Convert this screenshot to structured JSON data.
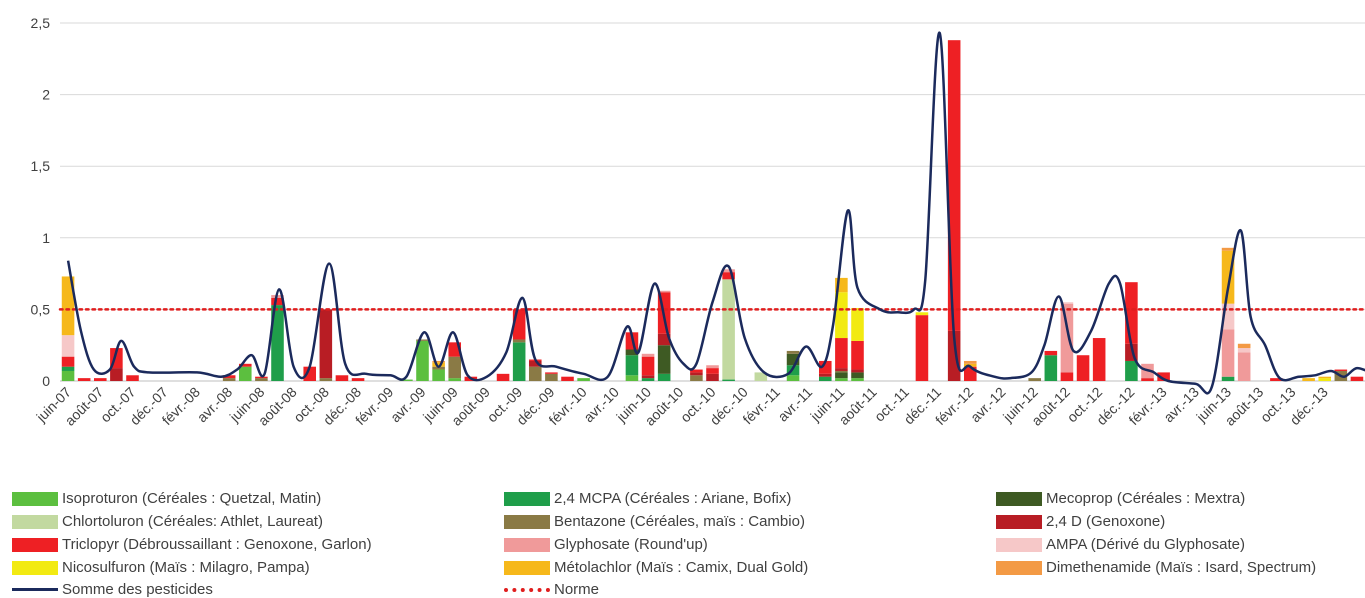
{
  "chart_data": {
    "type": "bar",
    "stacked": true,
    "ylim": [
      0,
      2.5
    ],
    "yticks": [
      "0",
      "0,5",
      "1",
      "1,5",
      "2",
      "2,5"
    ],
    "ytick_values": [
      0,
      0.5,
      1,
      1.5,
      2,
      2.5
    ],
    "grid": true,
    "legend_position": "bottom",
    "xtick_labels": [
      "juin-07",
      "août-07",
      "oct.-07",
      "déc.-07",
      "févr.-08",
      "avr.-08",
      "juin-08",
      "août-08",
      "oct.-08",
      "déc.-08",
      "févr.-09",
      "avr.-09",
      "juin-09",
      "août-09",
      "oct.-09",
      "déc.-09",
      "févr.-10",
      "avr.-10",
      "juin-10",
      "août-10",
      "oct.-10",
      "déc.-10",
      "févr.-11",
      "avr.-11",
      "juin-11",
      "août-11",
      "oct.-11",
      "déc.-11",
      "févr.-12",
      "avr.-12",
      "juin-12",
      "août-12",
      "oct.-12",
      "déc.-12",
      "févr.-13",
      "avr.-13",
      "juin-13",
      "août-13",
      "oct.-13",
      "déc.-13"
    ],
    "series": [
      {
        "name": "Isoproturon (Céréales : Quetzal, Matin)",
        "color": "#5cbf3f"
      },
      {
        "name": "2,4 MCPA (Céréales : Ariane, Bofix)",
        "color": "#1f9e4a"
      },
      {
        "name": "Mecoprop (Céréales : Mextra)",
        "color": "#3e5a23"
      },
      {
        "name": "Chlortoluron (Céréales: Athlet, Laureat)",
        "color": "#c2d9a0"
      },
      {
        "name": "Bentazone (Céréales, maïs : Cambio)",
        "color": "#8a7a45"
      },
      {
        "name": "2,4 D (Genoxone)",
        "color": "#b81d24"
      },
      {
        "name": "Triclopyr (Débroussaillant : Genoxone, Garlon)",
        "color": "#ee2024"
      },
      {
        "name": "Glyphosate (Round'up)",
        "color": "#f09a9a"
      },
      {
        "name": "AMPA (Dérivé du Glyphosate)",
        "color": "#f6c8c8"
      },
      {
        "name": "Nicosulfuron (Maïs : Milagro, Pampa)",
        "color": "#f2ea12"
      },
      {
        "name": "Métolachlor (Maïs : Camix, Dual Gold)",
        "color": "#f6b81b"
      },
      {
        "name": "Dimethenamide (Maïs : Isard, Spectrum)",
        "color": "#f39a45"
      }
    ],
    "samples": [
      {
        "m": 0,
        "v": [
          0.07,
          0.03,
          0,
          0,
          0,
          0,
          0.07,
          0,
          0.15,
          0,
          0.41,
          0
        ]
      },
      {
        "m": 1,
        "v": [
          0,
          0,
          0,
          0,
          0,
          0,
          0.02,
          0,
          0,
          0,
          0,
          0
        ]
      },
      {
        "m": 2,
        "v": [
          0,
          0,
          0,
          0,
          0,
          0,
          0.02,
          0,
          0,
          0,
          0,
          0
        ]
      },
      {
        "m": 3,
        "v": [
          0,
          0,
          0,
          0,
          0,
          0.09,
          0.14,
          0,
          0,
          0,
          0,
          0
        ]
      },
      {
        "m": 4,
        "v": [
          0,
          0,
          0,
          0,
          0,
          0,
          0.04,
          0,
          0,
          0,
          0,
          0
        ]
      },
      {
        "m": 10,
        "v": [
          0,
          0,
          0,
          0,
          0.02,
          0,
          0.02,
          0,
          0,
          0,
          0,
          0
        ]
      },
      {
        "m": 11,
        "v": [
          0.1,
          0,
          0,
          0,
          0,
          0,
          0.02,
          0,
          0,
          0,
          0,
          0
        ]
      },
      {
        "m": 12,
        "v": [
          0,
          0,
          0,
          0,
          0.02,
          0,
          0.01,
          0,
          0,
          0,
          0,
          0
        ]
      },
      {
        "m": 13,
        "v": [
          0,
          0.53,
          0,
          0,
          0,
          0,
          0.05,
          0.02,
          0,
          0,
          0,
          0
        ]
      },
      {
        "m": 15,
        "v": [
          0,
          0,
          0,
          0,
          0,
          0,
          0.1,
          0,
          0,
          0,
          0,
          0
        ]
      },
      {
        "m": 16,
        "v": [
          0,
          0,
          0,
          0,
          0.02,
          0.48,
          0,
          0,
          0,
          0,
          0,
          0
        ]
      },
      {
        "m": 17,
        "v": [
          0,
          0,
          0,
          0,
          0,
          0,
          0.04,
          0,
          0,
          0,
          0,
          0
        ]
      },
      {
        "m": 18,
        "v": [
          0,
          0,
          0,
          0,
          0,
          0,
          0.02,
          0,
          0,
          0,
          0,
          0
        ]
      },
      {
        "m": 21,
        "v": [
          0.01,
          0,
          0,
          0,
          0,
          0,
          0,
          0,
          0,
          0,
          0,
          0
        ]
      },
      {
        "m": 22,
        "v": [
          0.28,
          0,
          0,
          0,
          0.01,
          0,
          0,
          0,
          0,
          0,
          0,
          0
        ]
      },
      {
        "m": 23,
        "v": [
          0.08,
          0,
          0,
          0,
          0.02,
          0,
          0,
          0,
          0,
          0,
          0.03,
          0.01
        ]
      },
      {
        "m": 24,
        "v": [
          0.02,
          0,
          0,
          0,
          0.15,
          0,
          0.1,
          0,
          0,
          0,
          0,
          0
        ]
      },
      {
        "m": 25,
        "v": [
          0,
          0,
          0,
          0,
          0,
          0,
          0.03,
          0,
          0,
          0,
          0,
          0
        ]
      },
      {
        "m": 27,
        "v": [
          0,
          0,
          0,
          0,
          0,
          0,
          0.05,
          0,
          0,
          0,
          0,
          0
        ]
      },
      {
        "m": 28,
        "v": [
          0,
          0.27,
          0,
          0,
          0.02,
          0,
          0.21,
          0,
          0,
          0,
          0,
          0
        ]
      },
      {
        "m": 29,
        "v": [
          0,
          0,
          0,
          0,
          0.1,
          0.04,
          0.01,
          0,
          0,
          0,
          0,
          0
        ]
      },
      {
        "m": 30,
        "v": [
          0,
          0,
          0,
          0,
          0.05,
          0,
          0.01,
          0,
          0,
          0,
          0,
          0
        ]
      },
      {
        "m": 31,
        "v": [
          0,
          0,
          0,
          0,
          0,
          0,
          0.03,
          0,
          0,
          0,
          0,
          0
        ]
      },
      {
        "m": 32,
        "v": [
          0.02,
          0,
          0,
          0,
          0,
          0,
          0,
          0,
          0,
          0,
          0,
          0
        ]
      },
      {
        "m": 35,
        "v": [
          0.04,
          0.14,
          0.04,
          0,
          0,
          0,
          0.12,
          0,
          0,
          0,
          0,
          0
        ]
      },
      {
        "m": 36,
        "v": [
          0,
          0.02,
          0,
          0,
          0,
          0.02,
          0.13,
          0.02,
          0,
          0,
          0,
          0
        ]
      },
      {
        "m": 37,
        "v": [
          0,
          0.05,
          0.2,
          0,
          0,
          0.08,
          0.29,
          0.01,
          0,
          0,
          0,
          0
        ]
      },
      {
        "m": 39,
        "v": [
          0,
          0,
          0,
          0,
          0.04,
          0.02,
          0.02,
          0,
          0,
          0,
          0,
          0
        ]
      },
      {
        "m": 40,
        "v": [
          0,
          0,
          0,
          0,
          0,
          0.05,
          0.04,
          0.02,
          0,
          0,
          0,
          0
        ]
      },
      {
        "m": 41,
        "v": [
          0,
          0.01,
          0,
          0.7,
          0,
          0,
          0.05,
          0.02,
          0,
          0,
          0,
          0
        ]
      },
      {
        "m": 43,
        "v": [
          0,
          0,
          0,
          0.06,
          0,
          0,
          0,
          0,
          0,
          0,
          0,
          0
        ]
      },
      {
        "m": 45,
        "v": [
          0.04,
          0.07,
          0.08,
          0,
          0.02,
          0,
          0,
          0,
          0,
          0,
          0,
          0
        ]
      },
      {
        "m": 47,
        "v": [
          0,
          0.03,
          0,
          0,
          0,
          0.02,
          0.09,
          0,
          0,
          0,
          0,
          0
        ]
      },
      {
        "m": 48,
        "v": [
          0.02,
          0,
          0.04,
          0,
          0.01,
          0.02,
          0.21,
          0,
          0,
          0.32,
          0.1,
          0
        ]
      },
      {
        "m": 49,
        "v": [
          0.02,
          0,
          0.04,
          0,
          0,
          0.02,
          0.2,
          0,
          0,
          0.23,
          0,
          0
        ]
      },
      {
        "m": 53,
        "v": [
          0,
          0,
          0,
          0,
          0,
          0,
          0.46,
          0,
          0,
          0.02,
          0,
          0
        ]
      },
      {
        "m": 55,
        "v": [
          0,
          0,
          0,
          0,
          0,
          0.35,
          2.03,
          0,
          0,
          0,
          0,
          0
        ]
      },
      {
        "m": 56,
        "v": [
          0,
          0,
          0,
          0,
          0,
          0,
          0.1,
          0,
          0,
          0,
          0.02,
          0.02
        ]
      },
      {
        "m": 60,
        "v": [
          0,
          0,
          0,
          0,
          0.02,
          0,
          0,
          0,
          0,
          0,
          0,
          0
        ]
      },
      {
        "m": 61,
        "v": [
          0,
          0.18,
          0,
          0,
          0,
          0,
          0.03,
          0,
          0,
          0,
          0,
          0
        ]
      },
      {
        "m": 62,
        "v": [
          0,
          0,
          0,
          0,
          0,
          0,
          0.06,
          0.48,
          0.01,
          0,
          0,
          0
        ]
      },
      {
        "m": 63,
        "v": [
          0,
          0,
          0,
          0,
          0,
          0,
          0.18,
          0,
          0,
          0,
          0,
          0
        ]
      },
      {
        "m": 64,
        "v": [
          0,
          0,
          0,
          0,
          0,
          0,
          0.3,
          0,
          0,
          0,
          0,
          0
        ]
      },
      {
        "m": 66,
        "v": [
          0,
          0.14,
          0,
          0,
          0,
          0.12,
          0.43,
          0,
          0,
          0,
          0,
          0
        ]
      },
      {
        "m": 67,
        "v": [
          0,
          0,
          0,
          0,
          0,
          0,
          0.02,
          0.1,
          0,
          0,
          0,
          0
        ]
      },
      {
        "m": 68,
        "v": [
          0,
          0,
          0,
          0,
          0,
          0,
          0.06,
          0,
          0,
          0,
          0,
          0
        ]
      },
      {
        "m": 72,
        "v": [
          0,
          0.03,
          0,
          0,
          0,
          0,
          0,
          0.33,
          0.18,
          0,
          0.37,
          0.02
        ]
      },
      {
        "m": 73,
        "v": [
          0,
          0,
          0,
          0,
          0,
          0,
          0,
          0.2,
          0.03,
          0,
          0,
          0.03
        ]
      },
      {
        "m": 75,
        "v": [
          0,
          0,
          0,
          0,
          0,
          0,
          0.02,
          0,
          0,
          0,
          0,
          0
        ]
      },
      {
        "m": 77,
        "v": [
          0,
          0,
          0,
          0,
          0,
          0,
          0,
          0,
          0,
          0,
          0.02,
          0
        ]
      },
      {
        "m": 78,
        "v": [
          0,
          0,
          0,
          0,
          0,
          0,
          0,
          0,
          0,
          0.02,
          0.01,
          0
        ]
      },
      {
        "m": 79,
        "v": [
          0,
          0,
          0,
          0,
          0.07,
          0,
          0.01,
          0,
          0,
          0,
          0,
          0
        ]
      },
      {
        "m": 80,
        "v": [
          0,
          0,
          0,
          0,
          0,
          0,
          0.03,
          0,
          0,
          0,
          0,
          0
        ]
      }
    ],
    "sum_series": {
      "name": "Somme des pesticides",
      "color": "#1b2a5c",
      "points": [
        [
          0,
          0.84
        ],
        [
          0.8,
          0.35
        ],
        [
          1.6,
          0.08
        ],
        [
          2.6,
          0.08
        ],
        [
          3.3,
          0.28
        ],
        [
          4.1,
          0.1
        ],
        [
          5,
          0.06
        ],
        [
          8,
          0.06
        ],
        [
          9.5,
          0.03
        ],
        [
          10.5,
          0.08
        ],
        [
          11.4,
          0.18
        ],
        [
          12.2,
          0.05
        ],
        [
          13.1,
          0.64
        ],
        [
          14,
          0.1
        ],
        [
          15,
          0.1
        ],
        [
          16.2,
          0.82
        ],
        [
          17.2,
          0.12
        ],
        [
          18.5,
          0.05
        ],
        [
          20,
          0.04
        ],
        [
          21,
          0.03
        ],
        [
          22.1,
          0.34
        ],
        [
          23,
          0.1
        ],
        [
          23.9,
          0.34
        ],
        [
          24.8,
          0.04
        ],
        [
          26,
          0.03
        ],
        [
          27.2,
          0.2
        ],
        [
          28.2,
          0.58
        ],
        [
          29,
          0.15
        ],
        [
          30.3,
          0.1
        ],
        [
          32,
          0.05
        ],
        [
          33.5,
          0.03
        ],
        [
          34.7,
          0.38
        ],
        [
          35.4,
          0.2
        ],
        [
          36.4,
          0.68
        ],
        [
          37.3,
          0.3
        ],
        [
          38.2,
          0.12
        ],
        [
          39,
          0.12
        ],
        [
          40,
          0.55
        ],
        [
          41,
          0.8
        ],
        [
          42,
          0.3
        ],
        [
          43.2,
          0.06
        ],
        [
          44.7,
          0.05
        ],
        [
          45.8,
          0.24
        ],
        [
          46.8,
          0.1
        ],
        [
          47.5,
          0.4
        ],
        [
          48.4,
          1.19
        ],
        [
          49,
          0.65
        ],
        [
          50.4,
          0.5
        ],
        [
          51.5,
          0.48
        ],
        [
          52.5,
          0.5
        ],
        [
          53.2,
          0.7
        ],
        [
          54.1,
          2.43
        ],
        [
          55,
          0.3
        ],
        [
          56,
          0.1
        ],
        [
          57.5,
          0.03
        ],
        [
          58.5,
          0.02
        ],
        [
          59.8,
          0.06
        ],
        [
          60.6,
          0.25
        ],
        [
          61.5,
          0.59
        ],
        [
          62.4,
          0.21
        ],
        [
          63.5,
          0.35
        ],
        [
          64.6,
          0.68
        ],
        [
          65.3,
          0.68
        ],
        [
          66.2,
          0.16
        ],
        [
          67.4,
          0.06
        ],
        [
          68.3,
          0
        ],
        [
          70,
          -0.02
        ],
        [
          71,
          -0.04
        ],
        [
          72,
          0.65
        ],
        [
          72.8,
          1.05
        ],
        [
          73.4,
          0.45
        ],
        [
          74.3,
          0.25
        ],
        [
          75.2,
          0.02
        ],
        [
          76.4,
          0.03
        ],
        [
          77.4,
          0.04
        ],
        [
          78.4,
          0.07
        ],
        [
          79.2,
          0.03
        ],
        [
          80,
          0.09
        ],
        [
          81,
          0.05
        ]
      ]
    },
    "norm": {
      "name": "Norme",
      "value": 0.5,
      "color": "#e01e1e"
    }
  },
  "legend": {
    "isoproturon": "Isoproturon (Céréales : Quetzal, Matin)",
    "mcpa": "2,4 MCPA (Céréales : Ariane, Bofix)",
    "mecoprop": "Mecoprop (Céréales : Mextra)",
    "chlortoluron": "Chlortoluron (Céréales: Athlet, Laureat)",
    "bentazone": "Bentazone (Céréales, maïs : Cambio)",
    "d24": "2,4 D (Genoxone)",
    "triclopyr": "Triclopyr (Débroussaillant : Genoxone, Garlon)",
    "glyphosate": "Glyphosate (Round'up)",
    "ampa": "AMPA (Dérivé du Glyphosate)",
    "nicosulfuron": "Nicosulfuron (Maïs : Milagro, Pampa)",
    "metolachlor": "Métolachlor (Maïs : Camix, Dual Gold)",
    "dimethenamide": "Dimethenamide (Maïs : Isard, Spectrum)",
    "sum": "Somme des pesticides",
    "norm": "Norme"
  }
}
